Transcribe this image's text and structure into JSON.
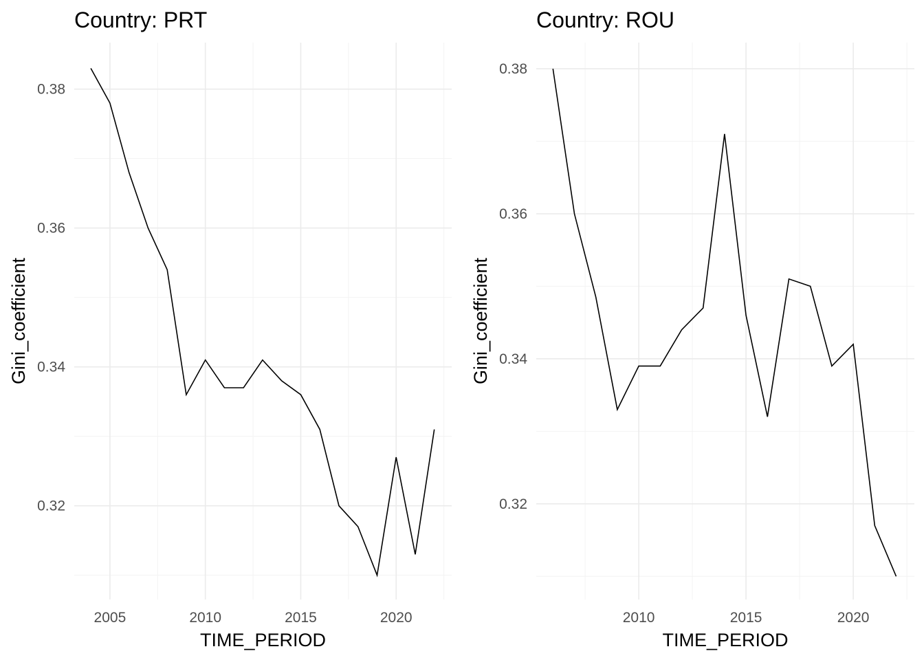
{
  "chart_data": [
    {
      "type": "line",
      "title": "Country: PRT",
      "xlabel": "TIME_PERIOD",
      "ylabel": "Gini_coefficient",
      "x": [
        2004,
        2005,
        2006,
        2007,
        2008,
        2009,
        2010,
        2011,
        2012,
        2013,
        2014,
        2015,
        2016,
        2017,
        2018,
        2019,
        2020,
        2021,
        2022
      ],
      "values": [
        0.383,
        0.378,
        0.368,
        0.36,
        0.354,
        0.336,
        0.341,
        0.337,
        0.337,
        0.341,
        0.338,
        0.336,
        0.331,
        0.32,
        0.317,
        0.31,
        0.327,
        0.313,
        0.331
      ],
      "xticks": [
        2005,
        2010,
        2015,
        2020
      ],
      "xtick_labels": [
        "2005",
        "2010",
        "2015",
        "2020"
      ],
      "xminor": [
        2007.5,
        2012.5,
        2017.5,
        2022.5
      ],
      "yticks": [
        0.32,
        0.34,
        0.36,
        0.38
      ],
      "ytick_labels": [
        "0.32",
        "0.34",
        "0.36",
        "0.38"
      ],
      "yminor": [
        0.31,
        0.33,
        0.35,
        0.37
      ],
      "xlim": [
        2003.13,
        2022.91
      ],
      "ylim": [
        0.3065,
        0.3867
      ],
      "grid": true
    },
    {
      "type": "line",
      "title": "Country: ROU",
      "xlabel": "TIME_PERIOD",
      "ylabel": "Gini_coefficient",
      "x": [
        2006,
        2007,
        2008,
        2009,
        2010,
        2011,
        2012,
        2013,
        2014,
        2015,
        2016,
        2017,
        2018,
        2019,
        2020,
        2021,
        2022
      ],
      "values": [
        0.38,
        0.36,
        0.3485,
        0.333,
        0.339,
        0.339,
        0.344,
        0.347,
        0.371,
        0.346,
        0.332,
        0.351,
        0.35,
        0.339,
        0.342,
        0.317,
        0.31
      ],
      "xticks": [
        2010,
        2015,
        2020
      ],
      "xtick_labels": [
        "2010",
        "2015",
        "2020"
      ],
      "xminor": [
        2007.5,
        2012.5,
        2017.5,
        2022.5
      ],
      "yticks": [
        0.32,
        0.34,
        0.36,
        0.38
      ],
      "ytick_labels": [
        "0.32",
        "0.34",
        "0.36",
        "0.38"
      ],
      "yminor": [
        0.31,
        0.33,
        0.35,
        0.37
      ],
      "xlim": [
        2005.22,
        2022.85
      ],
      "ylim": [
        0.3068,
        0.3836
      ],
      "grid": true
    }
  ]
}
